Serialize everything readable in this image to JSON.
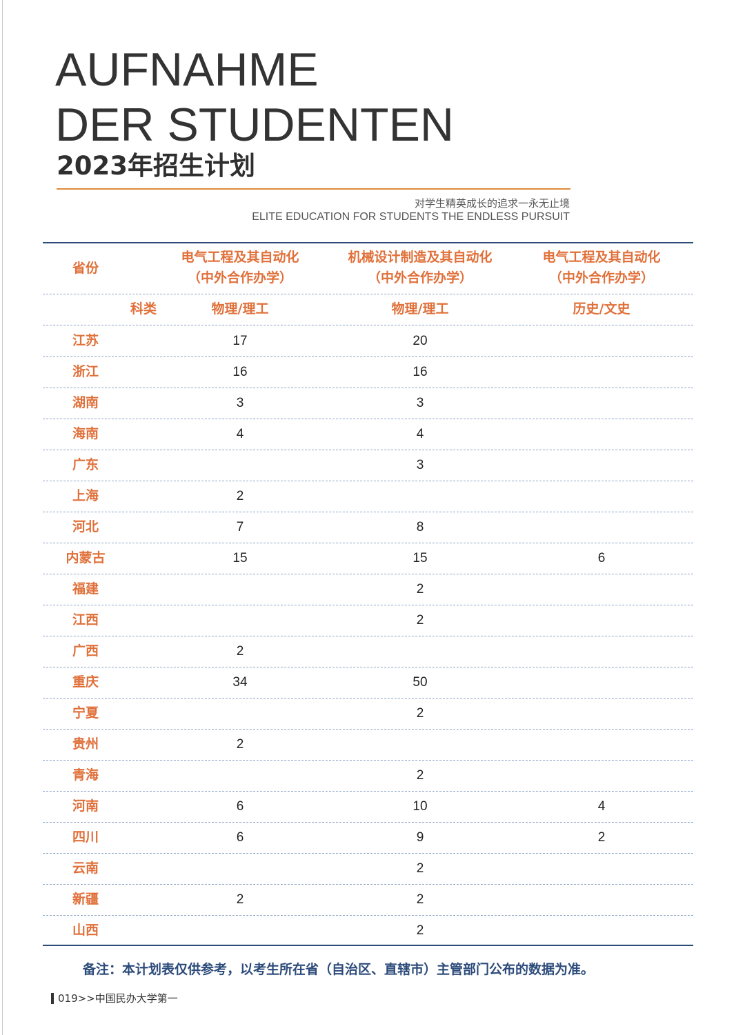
{
  "title": {
    "line1": "AUFNAHME",
    "line2": "DER STUDENTEN",
    "subtitle": "2023年招生计划"
  },
  "slogan": {
    "cn": "对学生精英成长的追求一永无止境",
    "en": "ELITE EDUCATION FOR STUDENTS THE ENDLESS PURSUIT"
  },
  "table": {
    "province_header": "省份",
    "category_header": "科类",
    "columns": [
      {
        "major": "电气工程及其自动化",
        "note": "（中外合作办学）",
        "category": "物理/理工"
      },
      {
        "major": "机械设计制造及其自动化",
        "note": "（中外合作办学）",
        "category": "物理/理工"
      },
      {
        "major": "电气工程及其自动化",
        "note": "（中外合作办学）",
        "category": "历史/文史"
      }
    ],
    "rows": [
      {
        "province": "江苏",
        "values": [
          "17",
          "20",
          ""
        ]
      },
      {
        "province": "浙江",
        "values": [
          "16",
          "16",
          ""
        ]
      },
      {
        "province": "湖南",
        "values": [
          "3",
          "3",
          ""
        ]
      },
      {
        "province": "海南",
        "values": [
          "4",
          "4",
          ""
        ]
      },
      {
        "province": "广东",
        "values": [
          "",
          "3",
          ""
        ]
      },
      {
        "province": "上海",
        "values": [
          "2",
          "",
          ""
        ]
      },
      {
        "province": "河北",
        "values": [
          "7",
          "8",
          ""
        ]
      },
      {
        "province": "内蒙古",
        "values": [
          "15",
          "15",
          "6"
        ]
      },
      {
        "province": "福建",
        "values": [
          "",
          "2",
          ""
        ]
      },
      {
        "province": "江西",
        "values": [
          "",
          "2",
          ""
        ]
      },
      {
        "province": "广西",
        "values": [
          "2",
          "",
          ""
        ]
      },
      {
        "province": "重庆",
        "values": [
          "34",
          "50",
          ""
        ]
      },
      {
        "province": "宁夏",
        "values": [
          "",
          "2",
          ""
        ]
      },
      {
        "province": "贵州",
        "values": [
          "2",
          "",
          ""
        ]
      },
      {
        "province": "青海",
        "values": [
          "",
          "2",
          ""
        ]
      },
      {
        "province": "河南",
        "values": [
          "6",
          "10",
          "4"
        ]
      },
      {
        "province": "四川",
        "values": [
          "6",
          "9",
          "2"
        ]
      },
      {
        "province": "云南",
        "values": [
          "",
          "2",
          ""
        ]
      },
      {
        "province": "新疆",
        "values": [
          "2",
          "2",
          ""
        ]
      },
      {
        "province": "山西",
        "values": [
          "",
          "2",
          ""
        ]
      }
    ]
  },
  "note": "备注：本计划表仅供参考，以考生所在省（自治区、直辖市）主管部门公布的数据为准。",
  "footer": "019>>中国民办大学第一",
  "colors": {
    "accent_orange": "#e0703a",
    "rule_blue": "#2c4b7a",
    "title_gray": "#333333"
  }
}
